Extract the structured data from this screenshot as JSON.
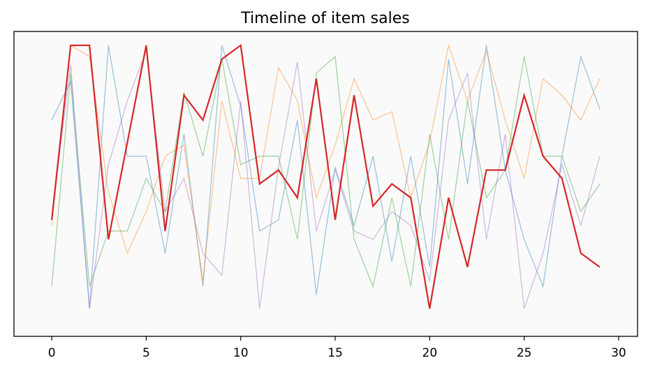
{
  "chart_data": {
    "type": "line",
    "title": "Timeline of item sales",
    "xlabel": "",
    "ylabel": "",
    "xlim": [
      -2,
      31
    ],
    "ylim": [
      -0.05,
      1.05
    ],
    "xticks": [
      0,
      5,
      10,
      15,
      20,
      25,
      30
    ],
    "yticks": [],
    "grid": false,
    "x": [
      0,
      1,
      2,
      3,
      4,
      5,
      6,
      7,
      8,
      9,
      10,
      11,
      12,
      13,
      14,
      15,
      16,
      17,
      18,
      19,
      20,
      21,
      22,
      23,
      24,
      25,
      26,
      27,
      28,
      29
    ],
    "series": [
      {
        "color": "#1f77b4",
        "highlight": false,
        "values": [
          0.73,
          0.87,
          0.05,
          1.0,
          0.6,
          0.6,
          0.25,
          0.68,
          0.13,
          1.0,
          0.78,
          0.33,
          0.37,
          0.73,
          0.1,
          0.56,
          0.35,
          0.6,
          0.22,
          0.6,
          0.2,
          0.95,
          0.5,
          1.0,
          0.55,
          0.3,
          0.13,
          0.6,
          0.96,
          0.77
        ]
      },
      {
        "color": "#ff7f0e",
        "highlight": false,
        "values": [
          0.35,
          1.0,
          0.96,
          0.47,
          0.25,
          0.4,
          0.6,
          0.64,
          0.15,
          0.8,
          0.52,
          0.52,
          0.92,
          0.8,
          0.45,
          0.64,
          0.88,
          0.73,
          0.76,
          0.45,
          0.65,
          1.0,
          0.8,
          0.98,
          0.73,
          0.52,
          0.88,
          0.82,
          0.73,
          0.88
        ]
      },
      {
        "color": "#2ca02c",
        "highlight": false,
        "values": [
          0.13,
          0.9,
          0.13,
          0.33,
          0.33,
          0.52,
          0.4,
          0.83,
          0.6,
          0.95,
          0.57,
          0.6,
          0.6,
          0.3,
          0.9,
          0.96,
          0.3,
          0.13,
          0.45,
          0.13,
          0.68,
          0.3,
          0.8,
          0.45,
          0.55,
          0.96,
          0.6,
          0.6,
          0.4,
          0.5
        ]
      },
      {
        "color": "#9467bd",
        "highlight": false,
        "values": [
          0.38,
          0.93,
          0.05,
          0.57,
          0.8,
          0.98,
          0.4,
          0.52,
          0.25,
          0.17,
          0.8,
          0.05,
          0.56,
          0.94,
          0.33,
          0.55,
          0.33,
          0.3,
          0.4,
          0.35,
          0.15,
          0.73,
          0.9,
          0.3,
          0.68,
          0.05,
          0.25,
          0.57,
          0.35,
          0.6
        ]
      },
      {
        "color": "#d62728",
        "highlight": true,
        "values": [
          0.37,
          1.0,
          1.0,
          0.3,
          0.65,
          1.0,
          0.33,
          0.82,
          0.73,
          0.95,
          1.0,
          0.5,
          0.55,
          0.45,
          0.88,
          0.37,
          0.82,
          0.42,
          0.5,
          0.45,
          0.05,
          0.45,
          0.2,
          0.55,
          0.55,
          0.82,
          0.6,
          0.52,
          0.25,
          0.2
        ]
      }
    ]
  }
}
